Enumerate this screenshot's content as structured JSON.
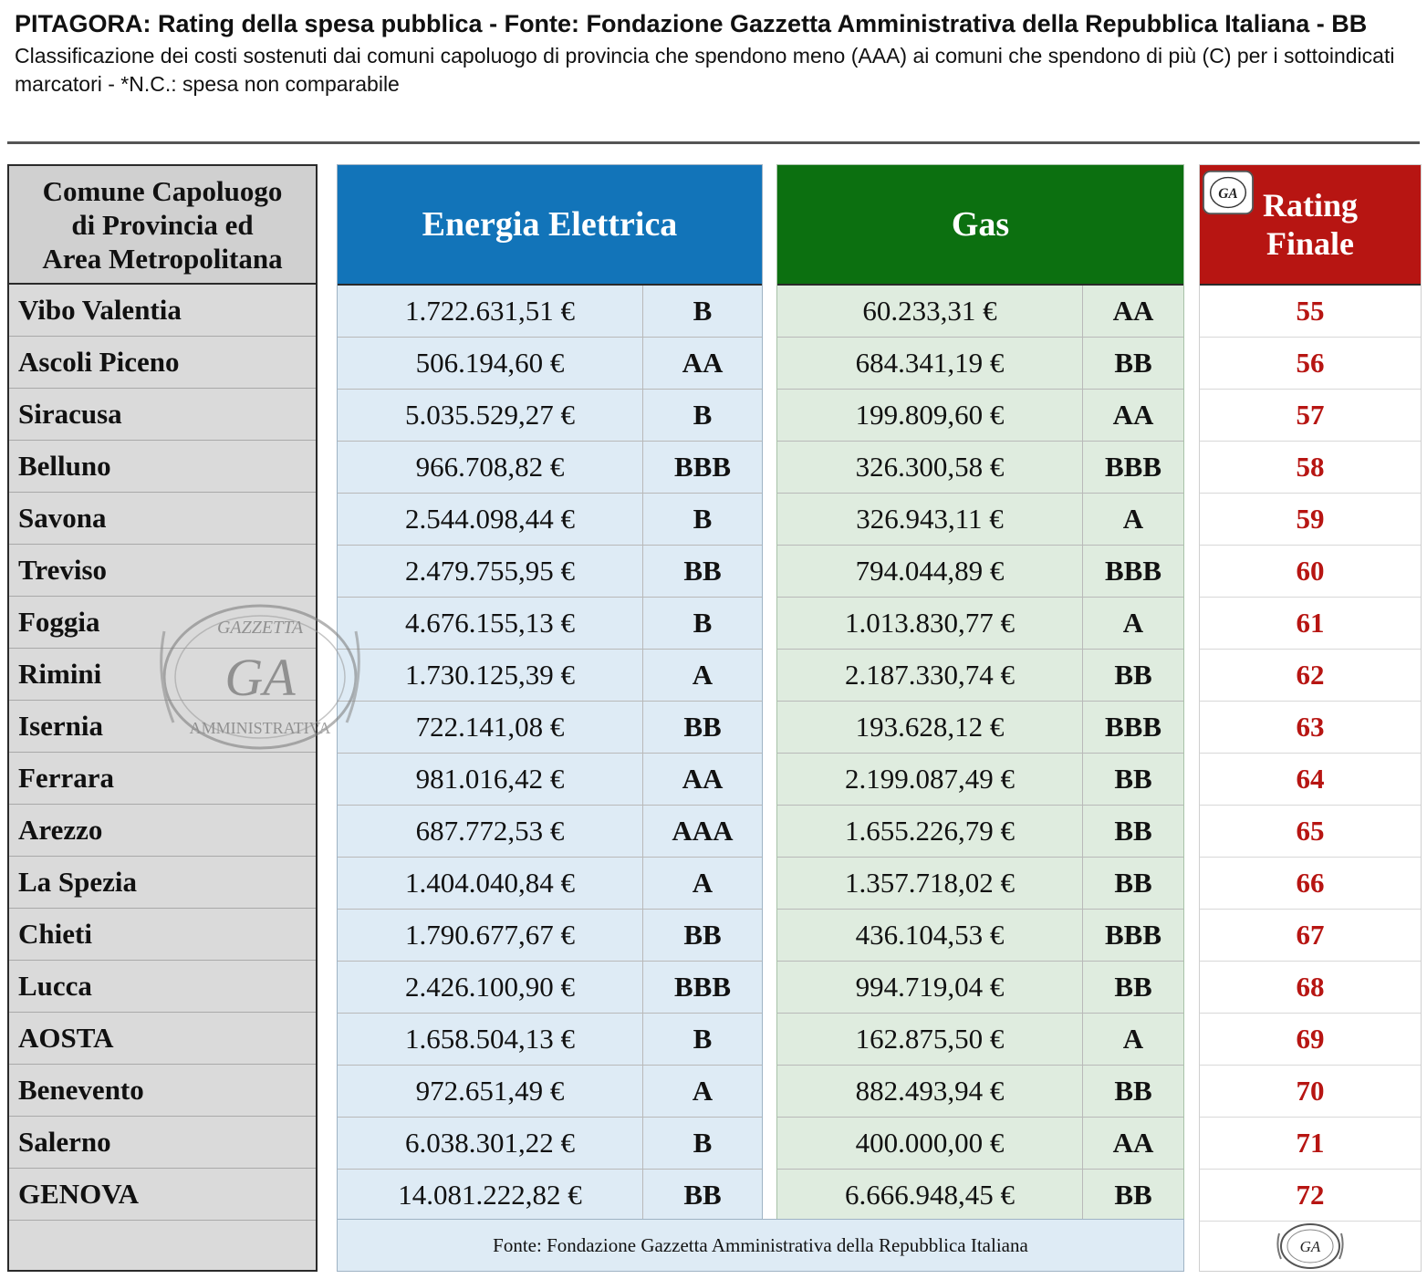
{
  "header": {
    "title": "PITAGORA: Rating della spesa pubblica - Fonte: Fondazione Gazzetta Amministrativa della Repubblica Italiana - BB",
    "subtitle": "Classificazione dei costi sostenuti dai comuni capoluogo di provincia che spendono meno (AAA) ai comuni che spendono di più (C) per i sottoindicati marcatori - *N.C.: spesa non comparabile"
  },
  "columns": {
    "comune_line1": "Comune Capoluogo",
    "comune_line2": "di Provincia ed",
    "comune_line3": "Area Metropolitana",
    "energia": "Energia Elettrica",
    "gas": "Gas",
    "rating_line1": "Rating",
    "rating_line2": "Finale"
  },
  "rows": [
    {
      "comune": "Vibo Valentia",
      "energia": "1.722.631,51 €",
      "energia_rating": "B",
      "gas": "60.233,31 €",
      "gas_rating": "AA",
      "rating": "55"
    },
    {
      "comune": "Ascoli Piceno",
      "energia": "506.194,60 €",
      "energia_rating": "AA",
      "gas": "684.341,19 €",
      "gas_rating": "BB",
      "rating": "56"
    },
    {
      "comune": "Siracusa",
      "energia": "5.035.529,27 €",
      "energia_rating": "B",
      "gas": "199.809,60 €",
      "gas_rating": "AA",
      "rating": "57"
    },
    {
      "comune": "Belluno",
      "energia": "966.708,82 €",
      "energia_rating": "BBB",
      "gas": "326.300,58 €",
      "gas_rating": "BBB",
      "rating": "58"
    },
    {
      "comune": "Savona",
      "energia": "2.544.098,44 €",
      "energia_rating": "B",
      "gas": "326.943,11 €",
      "gas_rating": "A",
      "rating": "59"
    },
    {
      "comune": "Treviso",
      "energia": "2.479.755,95 €",
      "energia_rating": "BB",
      "gas": "794.044,89 €",
      "gas_rating": "BBB",
      "rating": "60"
    },
    {
      "comune": "Foggia",
      "energia": "4.676.155,13 €",
      "energia_rating": "B",
      "gas": "1.013.830,77 €",
      "gas_rating": "A",
      "rating": "61"
    },
    {
      "comune": "Rimini",
      "energia": "1.730.125,39 €",
      "energia_rating": "A",
      "gas": "2.187.330,74 €",
      "gas_rating": "BB",
      "rating": "62"
    },
    {
      "comune": "Isernia",
      "energia": "722.141,08 €",
      "energia_rating": "BB",
      "gas": "193.628,12 €",
      "gas_rating": "BBB",
      "rating": "63"
    },
    {
      "comune": "Ferrara",
      "energia": "981.016,42 €",
      "energia_rating": "AA",
      "gas": "2.199.087,49 €",
      "gas_rating": "BB",
      "rating": "64"
    },
    {
      "comune": "Arezzo",
      "energia": "687.772,53 €",
      "energia_rating": "AAA",
      "gas": "1.655.226,79 €",
      "gas_rating": "BB",
      "rating": "65"
    },
    {
      "comune": "La Spezia",
      "energia": "1.404.040,84 €",
      "energia_rating": "A",
      "gas": "1.357.718,02 €",
      "gas_rating": "BB",
      "rating": "66"
    },
    {
      "comune": "Chieti",
      "energia": "1.790.677,67 €",
      "energia_rating": "BB",
      "gas": "436.104,53 €",
      "gas_rating": "BBB",
      "rating": "67"
    },
    {
      "comune": "Lucca",
      "energia": "2.426.100,90 €",
      "energia_rating": "BBB",
      "gas": "994.719,04 €",
      "gas_rating": "BB",
      "rating": "68"
    },
    {
      "comune": "AOSTA",
      "energia": "1.658.504,13 €",
      "energia_rating": "B",
      "gas": "162.875,50 €",
      "gas_rating": "A",
      "rating": "69"
    },
    {
      "comune": "Benevento",
      "energia": "972.651,49 €",
      "energia_rating": "A",
      "gas": "882.493,94 €",
      "gas_rating": "BB",
      "rating": "70"
    },
    {
      "comune": "Salerno",
      "energia": "6.038.301,22 €",
      "energia_rating": "B",
      "gas": "400.000,00 €",
      "gas_rating": "AA",
      "rating": "71"
    },
    {
      "comune": "GENOVA",
      "energia": "14.081.222,82 €",
      "energia_rating": "BB",
      "gas": "6.666.948,45 €",
      "gas_rating": "BB",
      "rating": "72"
    }
  ],
  "footer": {
    "source": "Fonte: Fondazione Gazzetta Amministrativa della Repubblica Italiana"
  },
  "seal": {
    "text_top": "GAZZETTA",
    "monogram": "GA",
    "text_bottom": "AMMINISTRATIVA"
  },
  "colors": {
    "energia_header": "#1274b9",
    "gas_header": "#0c7010",
    "rating_header": "#b71512",
    "rating_text": "#b71512"
  }
}
